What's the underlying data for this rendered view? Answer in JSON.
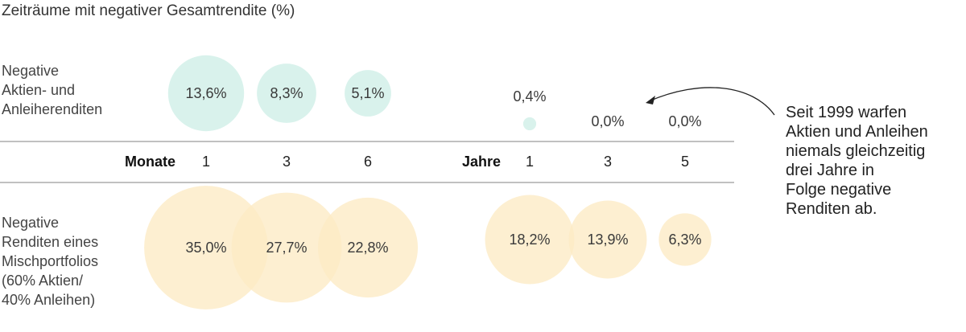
{
  "title": "Zeiträume mit negativer Gesamtrendite (%)",
  "row_labels": {
    "top": [
      "Negative",
      "Aktien- und",
      "Anleiherenditen"
    ],
    "bottom": [
      "Negative",
      "Renditen eines",
      "Mischportfolios",
      "(60% Aktien/",
      "40% Anleihen)"
    ]
  },
  "axis": {
    "groups": [
      {
        "unit": "Monate",
        "ticks": [
          "1",
          "3",
          "6"
        ]
      },
      {
        "unit": "Jahre",
        "ticks": [
          "1",
          "3",
          "5"
        ]
      }
    ]
  },
  "annotation": [
    "Seit 1999 warfen",
    "Aktien und Anleihen",
    "niemals gleichzeitig",
    "drei Jahre in",
    "Folge negative",
    "Renditen ab."
  ],
  "colors": {
    "top": "#d9f2ec",
    "bottom": "#fdebc4",
    "line": "#9a9a9a",
    "arrow": "#222222"
  },
  "chart_data": {
    "type": "bubble",
    "title": "Zeiträume mit negativer Gesamtrendite (%)",
    "categories": [
      "1 Monat",
      "3 Monate",
      "6 Monate",
      "1 Jahr",
      "3 Jahre",
      "5 Jahre"
    ],
    "series": [
      {
        "name": "Negative Aktien- und Anleiherenditen",
        "values": [
          13.6,
          8.3,
          5.1,
          0.4,
          0.0,
          0.0
        ],
        "labels": [
          "13,6%",
          "8,3%",
          "5,1%",
          "0,4%",
          "0,0%",
          "0,0%"
        ]
      },
      {
        "name": "Negative Renditen eines Mischportfolios (60% Aktien/40% Anleihen)",
        "values": [
          35.0,
          27.7,
          22.8,
          18.2,
          13.9,
          6.3
        ],
        "labels": [
          "35,0%",
          "27,7%",
          "22,8%",
          "18,2%",
          "13,9%",
          "6,3%"
        ]
      }
    ]
  }
}
